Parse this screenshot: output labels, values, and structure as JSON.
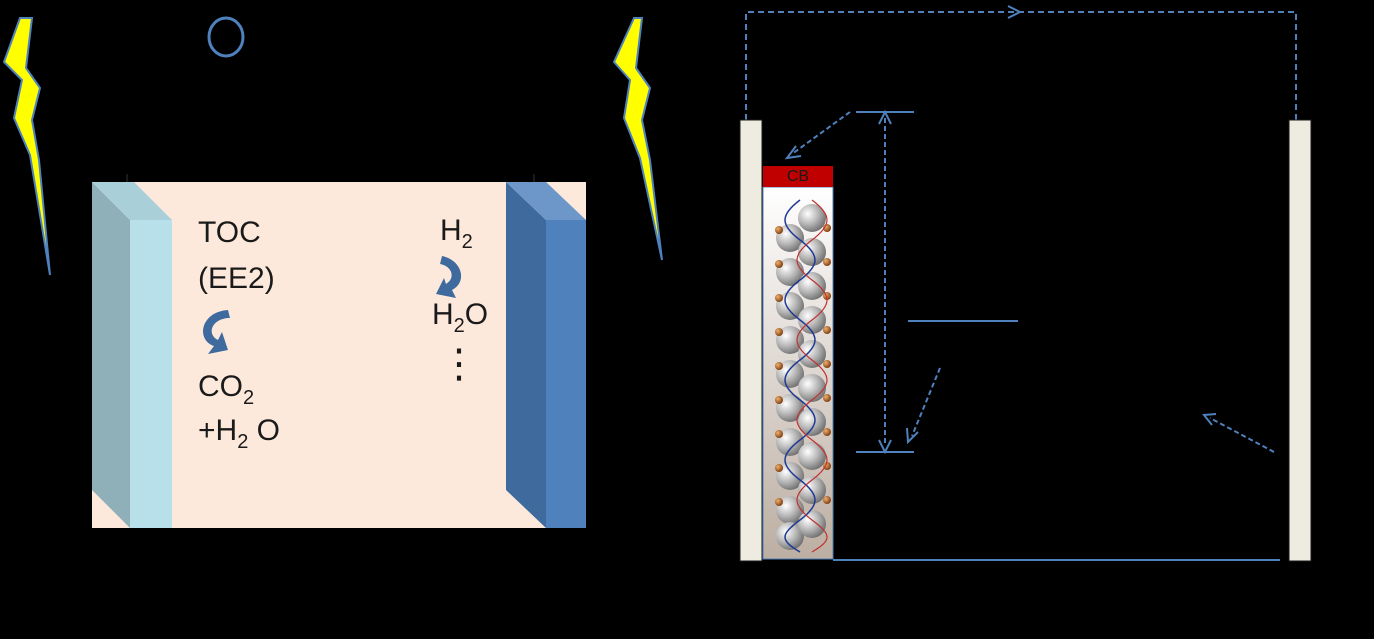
{
  "left_cell": {
    "circle_symbol": "O",
    "toc": "TOC",
    "ee2": "(EE2)",
    "co2_base": "CO",
    "co2_sub": "2",
    "h2o_prod_prefix": "+H",
    "h2o_prod_sub": "2",
    "h2o_prod_suffix": " O",
    "h2_base": "H",
    "h2_sub": "2",
    "h2o_base_h": "H",
    "h2o_sub": "2",
    "h2o_base_o": "O",
    "ellipsis": "⋮"
  },
  "right_cell": {
    "cb_label": "CB"
  },
  "colors": {
    "background": "#000000",
    "cell_fill": "#fde9dc",
    "photoanode_light": "#b7e0ea",
    "photoanode_side": "#8fb0b8",
    "cathode_front": "#4f81bd",
    "cathode_side": "#3f6a9e",
    "wire": "#4f81bd",
    "lightning": "#ffff00",
    "conduction_band": "#c00000",
    "electrode": "#eeece1"
  },
  "icons": [
    "lightning-bolt-icon",
    "curved-arrow-icon",
    "helix-nanostructure-icon"
  ]
}
